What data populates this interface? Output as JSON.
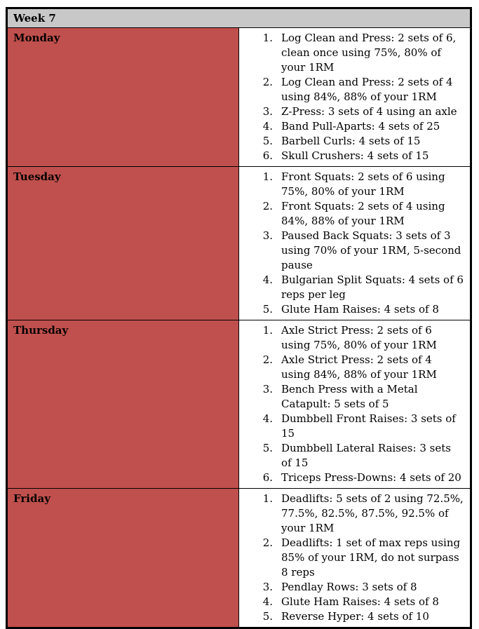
{
  "week_title": "Week 7",
  "days": [
    {
      "name": "Monday",
      "items": [
        {
          "num": "1.",
          "text": "Log Clean and Press: 2 sets of 6, clean once using 75%, 80% of your 1RM"
        },
        {
          "num": "2.",
          "text": "Log Clean and Press: 2 sets of 4 using 84%, 88% of your 1RM"
        },
        {
          "num": "3.",
          "text": "Z-Press: 3 sets of 4 using an axle"
        },
        {
          "num": "4.",
          "text": "Band Pull-Aparts: 4 sets of 25"
        },
        {
          "num": "5.",
          "text": "Barbell Curls: 4 sets of 15"
        },
        {
          "num": "6.",
          "text": "Skull Crushers: 4 sets of 15"
        }
      ]
    },
    {
      "name": "Tuesday",
      "items": [
        {
          "num": "1.",
          "text": "Front Squats: 2 sets of 6 using 75%, 80% of your 1RM"
        },
        {
          "num": "2.",
          "text": "Front Squats: 2 sets of 4 using 84%, 88% of your 1RM"
        },
        {
          "num": "3.",
          "text": "Paused Back Squats: 3 sets of 3 using 70% of your 1RM, 5-second pause"
        },
        {
          "num": "4.",
          "text": "Bulgarian Split Squats: 4 sets of 6 reps per leg"
        },
        {
          "num": "5.",
          "text": "Glute Ham Raises: 4 sets of 8"
        }
      ]
    },
    {
      "name": "Thursday",
      "items": [
        {
          "num": "1.",
          "text": "Axle Strict Press: 2 sets of 6 using 75%, 80% of your 1RM"
        },
        {
          "num": "2.",
          "text": "Axle Strict Press: 2 sets of 4 using 84%, 88% of your 1RM"
        },
        {
          "num": "3.",
          "text": "Bench Press with a Metal Catapult: 5 sets of 5"
        },
        {
          "num": "4.",
          "text": "Dumbbell Front Raises: 3 sets of 15"
        },
        {
          "num": "5.",
          "text": "Dumbbell Lateral Raises: 3 sets of 15"
        },
        {
          "num": "6.",
          "text": "Triceps Press-Downs: 4 sets of 20"
        }
      ]
    },
    {
      "name": "Friday",
      "items": [
        {
          "num": "1.",
          "text": "Deadlifts: 5 sets of 2 using 72.5%, 77.5%, 82.5%, 87.5%, 92.5% of your 1RM"
        },
        {
          "num": "2.",
          "text": "Deadlifts: 1 set of max reps using 85% of your 1RM, do not surpass 8 reps"
        },
        {
          "num": "3.",
          "text": "Pendlay Rows: 3 sets of 8"
        },
        {
          "num": "4.",
          "text": "Glute Ham Raises: 4 sets of 8"
        },
        {
          "num": "5.",
          "text": "Reverse Hyper: 4 sets of 10"
        }
      ]
    }
  ],
  "colors": {
    "header_bg": "#c8c8c8",
    "day_bg": "#c0504d"
  }
}
